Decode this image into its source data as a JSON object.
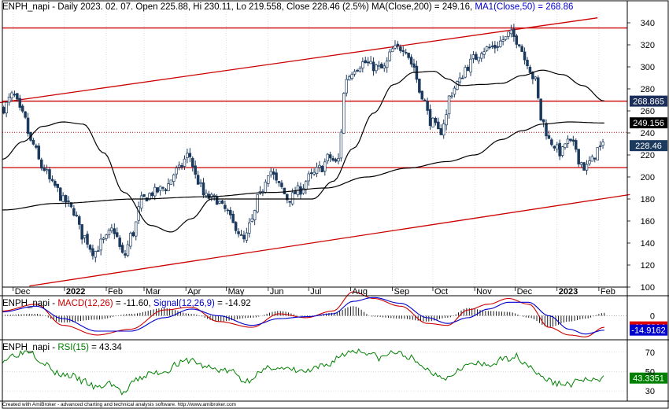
{
  "header": {
    "title_prefix": "ENPH_napi - Daily 2023. 02. 07. Open 225.88, Hi 230.11, Lo 219.558, Close 228.46 (2.5%) ",
    "ma200_text": "MA(Close,200) = 249.16, ",
    "ma50_text": "MA1(Close,50) = 268.86"
  },
  "footer": {
    "credit": "Created with AmiBroker - advanced charting and technical analysis software. http://www.amibroker.com"
  },
  "colors": {
    "candle": "#1c3a5e",
    "ma": "#000000",
    "trend": "#cc0000",
    "macd": "#cc0000",
    "signal": "#0000cc",
    "rsi": "#008000",
    "hist": "#000000",
    "grid": "#c8c8c8"
  },
  "chart_data": [
    {
      "type": "candlestick",
      "ylim": [
        100,
        350
      ],
      "yticks": [
        100,
        120,
        140,
        160,
        180,
        200,
        220,
        240,
        260,
        280,
        300,
        320,
        340
      ],
      "xticks": [
        {
          "label": "Dec",
          "day": 8
        },
        {
          "label": "2022",
          "day": 46,
          "bold": true
        },
        {
          "label": "Feb",
          "day": 77
        },
        {
          "label": "Mar",
          "day": 105
        },
        {
          "label": "Apr",
          "day": 136
        },
        {
          "label": "May",
          "day": 166
        },
        {
          "label": "Jun",
          "day": 197
        },
        {
          "label": "Jul",
          "day": 227
        },
        {
          "label": "Aug",
          "day": 258
        },
        {
          "label": "Sep",
          "day": 289
        },
        {
          "label": "Oct",
          "day": 319
        },
        {
          "label": "Nov",
          "day": 350
        },
        {
          "label": "Dec",
          "day": 380
        },
        {
          "label": "2023",
          "day": 411,
          "bold": true
        },
        {
          "label": "Feb",
          "day": 442
        }
      ],
      "price_keys": [
        [
          0,
          262
        ],
        [
          8,
          274
        ],
        [
          15,
          256
        ],
        [
          22,
          230
        ],
        [
          30,
          208
        ],
        [
          38,
          192
        ],
        [
          46,
          178
        ],
        [
          52,
          170
        ],
        [
          60,
          146
        ],
        [
          68,
          132
        ],
        [
          75,
          142
        ],
        [
          82,
          152
        ],
        [
          90,
          128
        ],
        [
          96,
          148
        ],
        [
          104,
          180
        ],
        [
          112,
          186
        ],
        [
          120,
          190
        ],
        [
          130,
          206
        ],
        [
          138,
          220
        ],
        [
          145,
          196
        ],
        [
          150,
          182
        ],
        [
          158,
          180
        ],
        [
          165,
          170
        ],
        [
          172,
          156
        ],
        [
          179,
          142
        ],
        [
          185,
          160
        ],
        [
          190,
          182
        ],
        [
          198,
          206
        ],
        [
          205,
          192
        ],
        [
          212,
          180
        ],
        [
          220,
          188
        ],
        [
          228,
          200
        ],
        [
          236,
          208
        ],
        [
          242,
          218
        ],
        [
          248,
          212
        ],
        [
          255,
          290
        ],
        [
          262,
          300
        ],
        [
          268,
          304
        ],
        [
          275,
          300
        ],
        [
          282,
          298
        ],
        [
          290,
          316
        ],
        [
          298,
          318
        ],
        [
          304,
          302
        ],
        [
          310,
          276
        ],
        [
          318,
          250
        ],
        [
          324,
          240
        ],
        [
          328,
          252
        ],
        [
          332,
          276
        ],
        [
          338,
          286
        ],
        [
          344,
          300
        ],
        [
          350,
          308
        ],
        [
          356,
          316
        ],
        [
          364,
          318
        ],
        [
          372,
          325
        ],
        [
          376,
          330
        ],
        [
          382,
          324
        ],
        [
          388,
          306
        ],
        [
          394,
          290
        ],
        [
          400,
          250
        ],
        [
          406,
          232
        ],
        [
          414,
          222
        ],
        [
          418,
          232
        ],
        [
          424,
          228
        ],
        [
          428,
          214
        ],
        [
          432,
          208
        ],
        [
          436,
          214
        ],
        [
          442,
          226
        ],
        [
          446,
          228
        ]
      ],
      "ma200_keys": [
        [
          0,
          170
        ],
        [
          40,
          176
        ],
        [
          100,
          180
        ],
        [
          150,
          182
        ],
        [
          200,
          186
        ],
        [
          240,
          190
        ],
        [
          270,
          200
        ],
        [
          300,
          208
        ],
        [
          330,
          214
        ],
        [
          350,
          220
        ],
        [
          370,
          234
        ],
        [
          385,
          242
        ],
        [
          400,
          248
        ],
        [
          420,
          250
        ],
        [
          446,
          249
        ]
      ],
      "ma50_keys": [
        [
          0,
          216
        ],
        [
          15,
          232
        ],
        [
          30,
          246
        ],
        [
          45,
          250
        ],
        [
          60,
          248
        ],
        [
          75,
          222
        ],
        [
          90,
          186
        ],
        [
          110,
          156
        ],
        [
          125,
          150
        ],
        [
          140,
          162
        ],
        [
          155,
          180
        ],
        [
          170,
          180
        ],
        [
          190,
          180
        ],
        [
          210,
          180
        ],
        [
          230,
          180
        ],
        [
          245,
          196
        ],
        [
          260,
          226
        ],
        [
          275,
          258
        ],
        [
          290,
          284
        ],
        [
          305,
          295
        ],
        [
          320,
          296
        ],
        [
          330,
          289
        ],
        [
          340,
          283
        ],
        [
          355,
          284
        ],
        [
          370,
          285
        ],
        [
          385,
          292
        ],
        [
          400,
          297
        ],
        [
          415,
          293
        ],
        [
          430,
          283
        ],
        [
          446,
          269
        ]
      ],
      "hlines": [
        {
          "value": 335.3,
          "style": "solid"
        },
        {
          "value": 268.9,
          "style": "solid"
        },
        {
          "value": 240.5,
          "style": "dotted"
        },
        {
          "value": 208.5,
          "style": "solid"
        }
      ],
      "trendlines": [
        {
          "x1": -2,
          "y1": 267.5,
          "x2": 441,
          "y2": 344.5
        },
        {
          "x1": 20,
          "y1": 101,
          "x2": 465,
          "y2": 184
        }
      ],
      "labels": [
        {
          "text": "268.865",
          "value": 268.865,
          "bg": "#1c2f5a",
          "fg": "#ffffff"
        },
        {
          "text": "249.156",
          "value": 249.156,
          "bg": "#000000",
          "fg": "#ffffff"
        },
        {
          "text": "228.46",
          "value": 228.46,
          "bg": "#1c3a5e",
          "fg": "#ffffff"
        }
      ]
    },
    {
      "type": "line",
      "title_prefix": "ENPH_napi - ",
      "title_macd": "MACD(12,26)",
      "title_mid": " = -11.60, ",
      "title_signal": "Signal(12,26,9)",
      "title_suffix": " = -14.92",
      "ylim": [
        -25,
        20
      ],
      "yticks": [
        0
      ],
      "macd_keys": [
        [
          0,
          5
        ],
        [
          25,
          12
        ],
        [
          45,
          -10
        ],
        [
          70,
          -20
        ],
        [
          95,
          -14
        ],
        [
          120,
          6
        ],
        [
          140,
          9
        ],
        [
          160,
          -6
        ],
        [
          185,
          -12
        ],
        [
          205,
          2
        ],
        [
          225,
          -2
        ],
        [
          245,
          5
        ],
        [
          260,
          25
        ],
        [
          275,
          18
        ],
        [
          295,
          10
        ],
        [
          315,
          -8
        ],
        [
          330,
          -10
        ],
        [
          345,
          6
        ],
        [
          360,
          12
        ],
        [
          375,
          18
        ],
        [
          390,
          12
        ],
        [
          405,
          -12
        ],
        [
          420,
          -20
        ],
        [
          432,
          -22
        ],
        [
          446,
          -12
        ]
      ],
      "signal_keys": [
        [
          0,
          4
        ],
        [
          25,
          10
        ],
        [
          45,
          -3
        ],
        [
          70,
          -16
        ],
        [
          95,
          -16
        ],
        [
          120,
          -2
        ],
        [
          140,
          7
        ],
        [
          160,
          0
        ],
        [
          185,
          -10
        ],
        [
          205,
          -3
        ],
        [
          225,
          -1
        ],
        [
          245,
          2
        ],
        [
          260,
          15
        ],
        [
          275,
          19
        ],
        [
          295,
          13
        ],
        [
          315,
          -2
        ],
        [
          330,
          -8
        ],
        [
          345,
          -2
        ],
        [
          360,
          7
        ],
        [
          375,
          14
        ],
        [
          390,
          14
        ],
        [
          405,
          0
        ],
        [
          420,
          -14
        ],
        [
          432,
          -19
        ],
        [
          446,
          -15
        ]
      ],
      "labels": [
        {
          "text": "-11.6014",
          "value": -11.6014,
          "bg": "#dd0000",
          "fg": "#ffffff"
        },
        {
          "text": "-14.9162",
          "value": -14.9162,
          "bg": "#0000cc",
          "fg": "#ffffff"
        }
      ]
    },
    {
      "type": "line",
      "title_prefix": "ENPH_napi - ",
      "title_rsi": "RSI(15)",
      "title_suffix": " = 43.34",
      "ylim": [
        22,
        82
      ],
      "yticks": [
        30,
        50,
        70
      ],
      "rsi_keys": [
        [
          0,
          62
        ],
        [
          10,
          68
        ],
        [
          20,
          72
        ],
        [
          30,
          60
        ],
        [
          40,
          48
        ],
        [
          50,
          46
        ],
        [
          60,
          40
        ],
        [
          70,
          33
        ],
        [
          80,
          38
        ],
        [
          90,
          28
        ],
        [
          100,
          42
        ],
        [
          110,
          48
        ],
        [
          120,
          50
        ],
        [
          130,
          58
        ],
        [
          140,
          62
        ],
        [
          150,
          55
        ],
        [
          160,
          52
        ],
        [
          170,
          50
        ],
        [
          180,
          40
        ],
        [
          190,
          48
        ],
        [
          200,
          55
        ],
        [
          210,
          52
        ],
        [
          225,
          50
        ],
        [
          240,
          56
        ],
        [
          250,
          66
        ],
        [
          260,
          72
        ],
        [
          270,
          70
        ],
        [
          280,
          64
        ],
        [
          290,
          70
        ],
        [
          300,
          66
        ],
        [
          310,
          56
        ],
        [
          320,
          48
        ],
        [
          330,
          44
        ],
        [
          340,
          55
        ],
        [
          350,
          58
        ],
        [
          360,
          56
        ],
        [
          370,
          62
        ],
        [
          380,
          66
        ],
        [
          390,
          57
        ],
        [
          400,
          44
        ],
        [
          410,
          38
        ],
        [
          420,
          37
        ],
        [
          430,
          42
        ],
        [
          440,
          40
        ],
        [
          446,
          43
        ]
      ],
      "labels": [
        {
          "text": "43.3351",
          "value": 43.3351,
          "bg": "#008000",
          "fg": "#ffffff"
        }
      ]
    }
  ]
}
